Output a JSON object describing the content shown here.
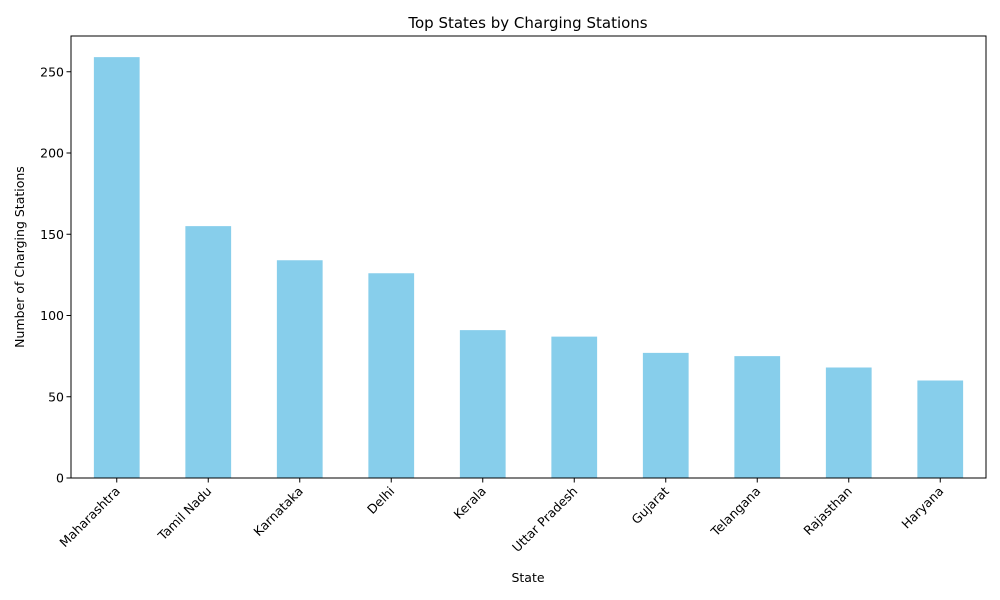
{
  "chart_data": {
    "type": "bar",
    "title": "Top States by Charging Stations",
    "xlabel": "State",
    "ylabel": "Number of Charging Stations",
    "categories": [
      "Maharashtra",
      "Tamil Nadu",
      "Karnataka",
      "Delhi",
      "Kerala",
      "Uttar Pradesh",
      "Gujarat",
      "Telangana",
      "Rajasthan",
      "Haryana"
    ],
    "values": [
      259,
      155,
      134,
      126,
      91,
      87,
      77,
      75,
      68,
      60
    ],
    "ylim": [
      0,
      272
    ],
    "yticks": [
      0,
      50,
      100,
      150,
      200,
      250
    ],
    "bar_color": "#87CEEB",
    "grid": false,
    "legend": "none"
  }
}
